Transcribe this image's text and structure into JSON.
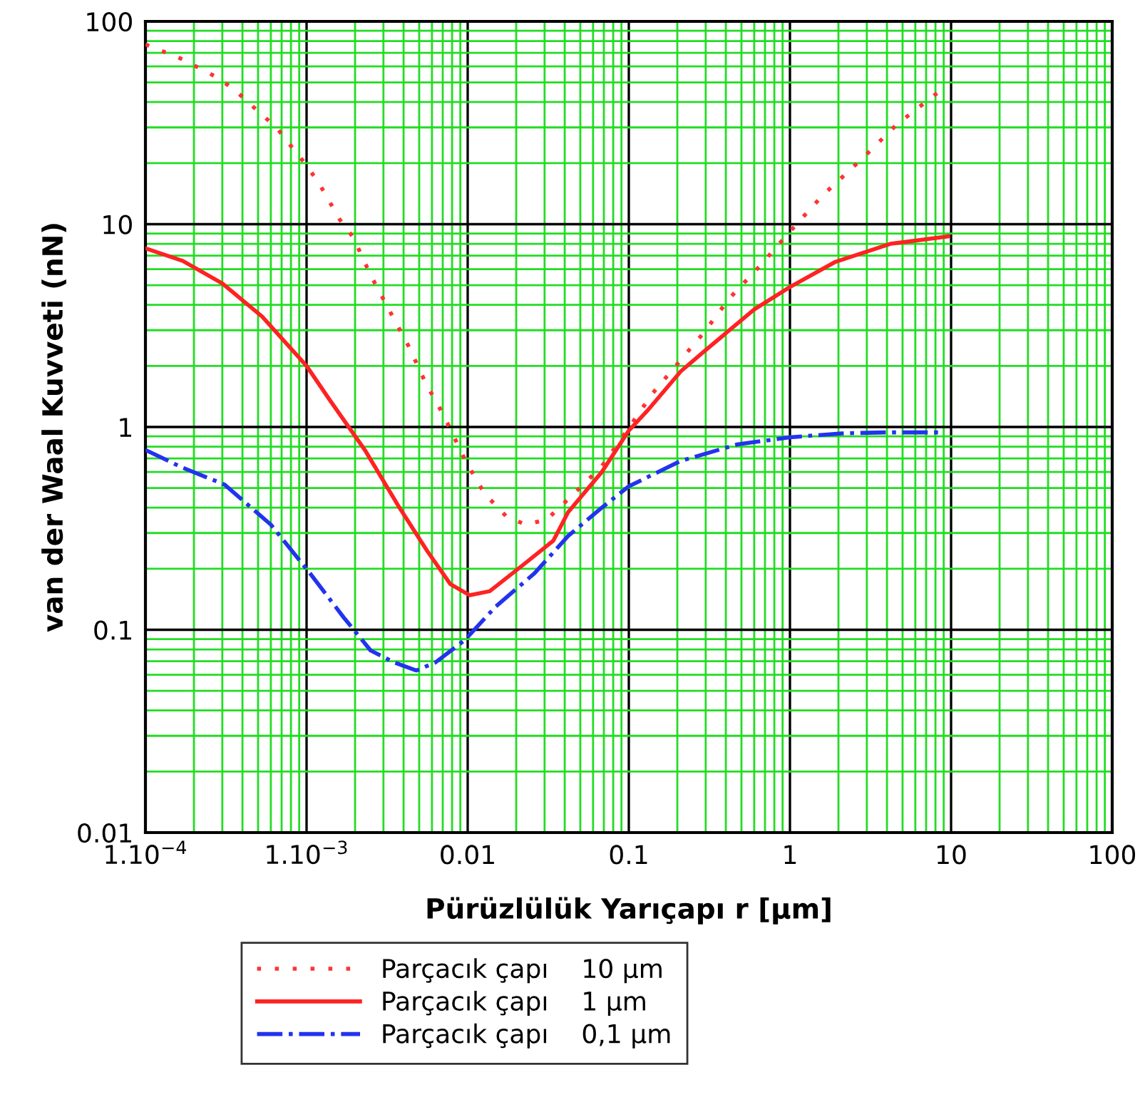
{
  "chart_data": {
    "type": "line",
    "xlabel": "Pürüzlülük Yarıçapı r [μm]",
    "ylabel": "van der Waal Kuvveti (nN)",
    "log": "xy",
    "xlim": [
      0.0001,
      100
    ],
    "ylim": [
      0.01,
      100
    ],
    "xticks": [
      {
        "value": 0.0001,
        "label": "1.10$^{−4}$"
      },
      {
        "value": 0.0002,
        "label": null
      },
      {
        "value": 0.0003,
        "label": null
      },
      {
        "value": 0.0004,
        "label": null
      },
      {
        "value": 0.0005,
        "label": null
      },
      {
        "value": 0.0006,
        "label": null
      },
      {
        "value": 0.0007,
        "label": null
      },
      {
        "value": 0.0008,
        "label": null
      },
      {
        "value": 0.0009,
        "label": null
      },
      {
        "value": 0.001,
        "label": "1.10$^{−3}$"
      },
      {
        "value": 0.002,
        "label": null
      },
      {
        "value": 0.003,
        "label": null
      },
      {
        "value": 0.004,
        "label": null
      },
      {
        "value": 0.005,
        "label": null
      },
      {
        "value": 0.006,
        "label": null
      },
      {
        "value": 0.007,
        "label": null
      },
      {
        "value": 0.008,
        "label": null
      },
      {
        "value": 0.009,
        "label": null
      },
      0.01,
      {
        "value": 0.02,
        "label": null
      },
      {
        "value": 0.03,
        "label": null
      },
      {
        "value": 0.04,
        "label": null
      },
      {
        "value": 0.05,
        "label": null
      },
      {
        "value": 0.06,
        "label": null
      },
      {
        "value": 0.07,
        "label": null
      },
      {
        "value": 0.08,
        "label": null
      },
      {
        "value": 0.09,
        "label": null
      },
      0.1,
      {
        "value": 0.2,
        "label": null
      },
      {
        "value": 0.3,
        "label": null
      },
      {
        "value": 0.4,
        "label": null
      },
      {
        "value": 0.5,
        "label": null
      },
      {
        "value": 0.6,
        "label": null
      },
      {
        "value": 0.7,
        "label": null
      },
      {
        "value": 0.8,
        "label": null
      },
      {
        "value": 0.9,
        "label": null
      },
      1,
      {
        "value": 2,
        "label": null
      },
      {
        "value": 3,
        "label": null
      },
      {
        "value": 4,
        "label": null
      },
      {
        "value": 5,
        "label": null
      },
      {
        "value": 6,
        "label": null
      },
      {
        "value": 7,
        "label": null
      },
      {
        "value": 8,
        "label": null
      },
      {
        "value": 9,
        "label": null
      },
      10,
      {
        "value": 20,
        "label": null
      },
      {
        "value": 30,
        "label": null
      },
      {
        "value": 40,
        "label": null
      },
      {
        "value": 50,
        "label": null
      },
      {
        "value": 60,
        "label": null
      },
      {
        "value": 70,
        "label": null
      },
      {
        "value": 80,
        "label": null
      },
      {
        "value": 90,
        "label": null
      },
      100
    ],
    "yticks": [
      0.01,
      {
        "value": 0.02,
        "label": null
      },
      {
        "value": 0.03,
        "label": null
      },
      {
        "value": 0.04,
        "label": null
      },
      {
        "value": 0.05,
        "label": null
      },
      {
        "value": 0.06,
        "label": null
      },
      {
        "value": 0.07,
        "label": null
      },
      {
        "value": 0.08,
        "label": null
      },
      {
        "value": 0.09,
        "label": null
      },
      0.1,
      {
        "value": 0.2,
        "label": null
      },
      {
        "value": 0.3,
        "label": null
      },
      {
        "value": 0.4,
        "label": null
      },
      {
        "value": 0.5,
        "label": null
      },
      {
        "value": 0.6,
        "label": null
      },
      {
        "value": 0.7,
        "label": null
      },
      {
        "value": 0.8,
        "label": null
      },
      {
        "value": 0.9,
        "label": null
      },
      1,
      {
        "value": 2,
        "label": null
      },
      {
        "value": 3,
        "label": null
      },
      {
        "value": 4,
        "label": null
      },
      {
        "value": 5,
        "label": null
      },
      {
        "value": 6,
        "label": null
      },
      {
        "value": 7,
        "label": null
      },
      {
        "value": 8,
        "label": null
      },
      {
        "value": 9,
        "label": null
      },
      10,
      {
        "value": 20,
        "label": null
      },
      {
        "value": 30,
        "label": null
      },
      {
        "value": 40,
        "label": null
      },
      {
        "value": 50,
        "label": null
      },
      {
        "value": 60,
        "label": null
      },
      {
        "value": 70,
        "label": null
      },
      {
        "value": 80,
        "label": null
      },
      {
        "value": 90,
        "label": null
      },
      100
    ],
    "grid": true,
    "legend": "bottom",
    "series": [
      {
        "name": "Parçacık çapı    10 μm",
        "color": "#ff3333",
        "line_style": "dotted",
        "x": [
          0.0001,
          0.00017,
          0.00029,
          0.00038,
          0.0005,
          0.00065,
          0.00081,
          0.001,
          0.0012,
          0.0016,
          0.00195,
          0.0025,
          0.0033,
          0.0043,
          0.0055,
          0.0071,
          0.0097,
          0.0127,
          0.0175,
          0.023,
          0.031,
          0.042,
          0.068,
          0.1,
          0.14,
          0.21,
          0.29,
          0.42,
          0.66,
          1,
          1.6,
          2.8,
          4.6,
          8.4
        ],
        "values": [
          77,
          65,
          52,
          44,
          36,
          30,
          24,
          19.5,
          15.8,
          10.6,
          8.6,
          5.6,
          3.7,
          2.5,
          1.64,
          1.14,
          0.68,
          0.47,
          0.36,
          0.33,
          0.35,
          0.44,
          0.64,
          0.99,
          1.46,
          2.14,
          2.9,
          4.3,
          6.3,
          9.2,
          13.9,
          21,
          31,
          45
        ]
      },
      {
        "name": "Parçacık çapı    1 μm",
        "color": "#ff2222",
        "line_style": "solid",
        "x": [
          0.0001,
          0.00017,
          0.0003,
          0.00053,
          0.001,
          0.0014,
          0.0023,
          0.0037,
          0.0056,
          0.0078,
          0.0103,
          0.0137,
          0.0206,
          0.034,
          0.042,
          0.068,
          0.1,
          0.13,
          0.21,
          0.29,
          0.4,
          0.6,
          1,
          1.9,
          4.2,
          9.6
        ],
        "values": [
          7.6,
          6.6,
          5.1,
          3.5,
          2.0,
          1.35,
          0.77,
          0.41,
          0.245,
          0.168,
          0.148,
          0.155,
          0.2,
          0.275,
          0.38,
          0.6,
          0.96,
          1.2,
          1.88,
          2.34,
          2.9,
          3.8,
          4.9,
          6.5,
          8.0,
          8.7
        ]
      },
      {
        "name": "Parçacık çapı    0,1 μm",
        "color": "#2233ee",
        "line_style": "dashed",
        "x": [
          0.0001,
          0.00017,
          0.00031,
          0.0006,
          0.00105,
          0.0017,
          0.0025,
          0.0035,
          0.0048,
          0.0063,
          0.0096,
          0.0149,
          0.026,
          0.042,
          0.068,
          0.1,
          0.21,
          0.47,
          1,
          2.1,
          3.9,
          8.4
        ],
        "values": [
          0.77,
          0.63,
          0.52,
          0.33,
          0.19,
          0.115,
          0.079,
          0.069,
          0.063,
          0.069,
          0.089,
          0.13,
          0.19,
          0.29,
          0.4,
          0.51,
          0.68,
          0.82,
          0.89,
          0.93,
          0.94,
          0.94
        ]
      }
    ]
  }
}
